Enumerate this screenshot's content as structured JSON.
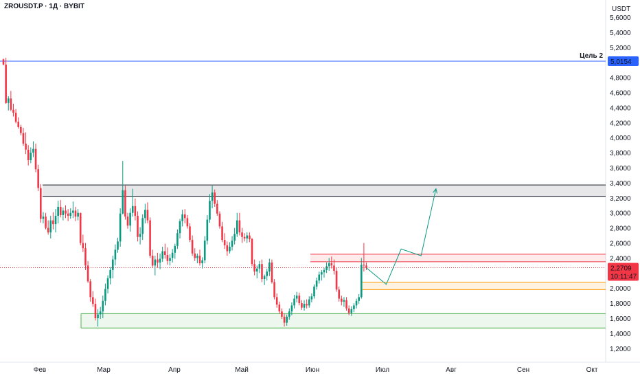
{
  "header": {
    "symbol_line": "ZROUSDT.P · 1Д · BYBIT"
  },
  "colors": {
    "up": "#089981",
    "down": "#f23645",
    "blue_line": "#2962ff",
    "green_zone": "#4caf50",
    "orange_zone": "#ff9800",
    "red_zone": "#f23645"
  },
  "chart_data": {
    "type": "candlestick",
    "currency_label": "USDT",
    "y_ticks": [
      "1,2000",
      "1,4000",
      "1,6000",
      "1,8000",
      "2,0000",
      "2,2000",
      "2,4000",
      "2,6000",
      "2,8000",
      "3,0000",
      "3,2000",
      "3,4000",
      "3,6000",
      "3,8000",
      "4,0000",
      "4,2000",
      "4,4000",
      "4,6000",
      "4,8000",
      "5,2000",
      "5,4000",
      "5,6000"
    ],
    "x_ticks": [
      "Фев",
      "Мар",
      "Апр",
      "Май",
      "Июн",
      "Июл",
      "Авг",
      "Сен",
      "Окт"
    ],
    "ylim": [
      1.1,
      5.75
    ],
    "target": {
      "label": "Цель 2",
      "value": 5.0154,
      "value_label": "5,0154"
    },
    "current_price": {
      "value": 2.2709,
      "value_label": "2,2709",
      "countdown": "10:11:47"
    },
    "zones": [
      {
        "name": "resistance-gray",
        "from": 3.22,
        "to": 3.37
      },
      {
        "name": "resistance-red",
        "from": 2.35,
        "to": 2.45
      },
      {
        "name": "support-orange",
        "from": 1.98,
        "to": 2.08
      },
      {
        "name": "support-green",
        "from": 1.47,
        "to": 1.66
      }
    ],
    "projection_path": [
      [
        0,
        2.27
      ],
      [
        8,
        2.05
      ],
      [
        14,
        2.52
      ],
      [
        22,
        2.43
      ],
      [
        28,
        3.32
      ]
    ],
    "candles": [
      [
        5.04,
        5.05,
        4.96,
        4.97
      ],
      [
        4.97,
        5.06,
        4.45,
        4.46
      ],
      [
        4.46,
        4.55,
        4.36,
        4.52
      ],
      [
        4.52,
        4.62,
        4.35,
        4.37
      ],
      [
        4.37,
        4.45,
        4.28,
        4.33
      ],
      [
        4.33,
        4.38,
        4.19,
        4.21
      ],
      [
        4.21,
        4.27,
        4.12,
        4.14
      ],
      [
        4.14,
        4.17,
        4.03,
        4.06
      ],
      [
        4.06,
        4.13,
        3.89,
        3.92
      ],
      [
        3.92,
        4.07,
        3.78,
        3.84
      ],
      [
        3.84,
        3.9,
        3.63,
        3.7
      ],
      [
        3.7,
        3.87,
        3.66,
        3.8
      ],
      [
        3.8,
        3.95,
        3.74,
        3.85
      ],
      [
        3.85,
        3.92,
        3.54,
        3.58
      ],
      [
        3.58,
        3.64,
        3.29,
        3.33
      ],
      [
        3.33,
        3.38,
        2.87,
        2.92
      ],
      [
        2.92,
        3.01,
        2.86,
        2.95
      ],
      [
        2.95,
        3.0,
        2.78,
        2.8
      ],
      [
        2.8,
        2.9,
        2.71,
        2.74
      ],
      [
        2.74,
        2.96,
        2.66,
        2.9
      ],
      [
        2.9,
        3.01,
        2.78,
        2.85
      ],
      [
        2.85,
        3.05,
        2.74,
        2.96
      ],
      [
        2.96,
        3.16,
        2.86,
        3.08
      ],
      [
        3.08,
        3.17,
        2.94,
        2.97
      ],
      [
        2.97,
        3.07,
        2.9,
        3.03
      ],
      [
        3.03,
        3.1,
        2.93,
        2.99
      ],
      [
        2.99,
        3.05,
        2.89,
        2.96
      ],
      [
        2.96,
        3.06,
        2.92,
        3.0
      ],
      [
        3.0,
        3.15,
        2.93,
        3.03
      ],
      [
        3.03,
        3.08,
        2.89,
        2.95
      ],
      [
        2.95,
        3.05,
        2.9,
        3.0
      ],
      [
        3.0,
        3.0,
        2.57,
        2.6
      ],
      [
        2.6,
        2.71,
        2.48,
        2.53
      ],
      [
        2.53,
        2.6,
        2.24,
        2.3
      ],
      [
        2.3,
        2.36,
        2.07,
        2.09
      ],
      [
        2.09,
        2.12,
        1.82,
        1.88
      ],
      [
        1.88,
        1.96,
        1.75,
        1.79
      ],
      [
        1.79,
        1.86,
        1.57,
        1.6
      ],
      [
        1.6,
        1.72,
        1.49,
        1.65
      ],
      [
        1.65,
        1.75,
        1.59,
        1.69
      ],
      [
        1.69,
        1.9,
        1.6,
        1.83
      ],
      [
        1.83,
        2.06,
        1.77,
        1.99
      ],
      [
        1.99,
        2.17,
        1.93,
        2.13
      ],
      [
        2.13,
        2.28,
        2.05,
        2.24
      ],
      [
        2.24,
        2.43,
        2.13,
        2.38
      ],
      [
        2.38,
        2.58,
        2.3,
        2.51
      ],
      [
        2.51,
        2.67,
        2.47,
        2.62
      ],
      [
        2.62,
        3.06,
        2.55,
        2.99
      ],
      [
        2.99,
        3.69,
        2.98,
        3.3
      ],
      [
        3.3,
        3.36,
        2.91,
        2.95
      ],
      [
        2.95,
        3.0,
        2.79,
        2.83
      ],
      [
        2.83,
        3.06,
        2.75,
        3.0
      ],
      [
        3.0,
        3.32,
        2.95,
        3.09
      ],
      [
        3.09,
        3.19,
        2.9,
        2.96
      ],
      [
        2.96,
        3.02,
        2.62,
        2.68
      ],
      [
        2.68,
        2.81,
        2.58,
        2.72
      ],
      [
        2.72,
        2.98,
        2.64,
        2.93
      ],
      [
        2.93,
        3.12,
        2.86,
        3.04
      ],
      [
        3.04,
        3.14,
        2.86,
        2.9
      ],
      [
        2.9,
        2.94,
        2.4,
        2.43
      ],
      [
        2.43,
        2.51,
        2.27,
        2.3
      ],
      [
        2.3,
        2.43,
        2.17,
        2.38
      ],
      [
        2.38,
        2.47,
        2.27,
        2.34
      ],
      [
        2.34,
        2.46,
        2.25,
        2.39
      ],
      [
        2.39,
        2.55,
        2.35,
        2.49
      ],
      [
        2.49,
        2.59,
        2.39,
        2.44
      ],
      [
        2.44,
        2.54,
        2.31,
        2.36
      ],
      [
        2.36,
        2.45,
        2.3,
        2.4
      ],
      [
        2.4,
        2.52,
        2.34,
        2.47
      ],
      [
        2.47,
        2.59,
        2.39,
        2.56
      ],
      [
        2.56,
        2.78,
        2.52,
        2.73
      ],
      [
        2.73,
        2.92,
        2.66,
        2.89
      ],
      [
        2.89,
        3.04,
        2.82,
        2.98
      ],
      [
        2.98,
        3.05,
        2.86,
        2.93
      ],
      [
        2.93,
        2.97,
        2.79,
        2.82
      ],
      [
        2.82,
        2.86,
        2.61,
        2.64
      ],
      [
        2.64,
        2.7,
        2.43,
        2.46
      ],
      [
        2.46,
        2.53,
        2.36,
        2.4
      ],
      [
        2.4,
        2.46,
        2.33,
        2.43
      ],
      [
        2.43,
        2.51,
        2.3,
        2.33
      ],
      [
        2.33,
        2.41,
        2.26,
        2.37
      ],
      [
        2.37,
        2.69,
        2.33,
        2.63
      ],
      [
        2.63,
        2.97,
        2.58,
        2.91
      ],
      [
        2.91,
        3.25,
        2.87,
        3.16
      ],
      [
        3.16,
        3.36,
        3.06,
        3.27
      ],
      [
        3.27,
        3.31,
        3.08,
        3.12
      ],
      [
        3.12,
        3.17,
        2.96,
        2.99
      ],
      [
        2.99,
        3.02,
        2.79,
        2.82
      ],
      [
        2.82,
        2.88,
        2.61,
        2.64
      ],
      [
        2.64,
        2.73,
        2.52,
        2.57
      ],
      [
        2.57,
        2.62,
        2.43,
        2.49
      ],
      [
        2.49,
        2.61,
        2.46,
        2.55
      ],
      [
        2.55,
        2.69,
        2.5,
        2.63
      ],
      [
        2.63,
        2.8,
        2.58,
        2.72
      ],
      [
        2.72,
        3.0,
        2.68,
        2.9
      ],
      [
        2.9,
        3.0,
        2.7,
        2.74
      ],
      [
        2.74,
        2.8,
        2.6,
        2.68
      ],
      [
        2.68,
        2.73,
        2.62,
        2.66
      ],
      [
        2.66,
        2.74,
        2.6,
        2.7
      ],
      [
        2.7,
        2.74,
        2.61,
        2.65
      ],
      [
        2.65,
        2.67,
        2.29,
        2.32
      ],
      [
        2.32,
        2.38,
        2.17,
        2.22
      ],
      [
        2.22,
        2.3,
        2.13,
        2.26
      ],
      [
        2.26,
        2.36,
        2.2,
        2.32
      ],
      [
        2.32,
        2.38,
        2.08,
        2.12
      ],
      [
        2.12,
        2.18,
        2.04,
        2.16
      ],
      [
        2.16,
        2.26,
        2.1,
        2.22
      ],
      [
        2.22,
        2.39,
        2.16,
        2.34
      ],
      [
        2.34,
        2.38,
        2.06,
        2.08
      ],
      [
        2.08,
        2.12,
        1.85,
        1.88
      ],
      [
        1.88,
        1.93,
        1.74,
        1.78
      ],
      [
        1.78,
        1.82,
        1.66,
        1.69
      ],
      [
        1.69,
        1.73,
        1.59,
        1.62
      ],
      [
        1.62,
        1.66,
        1.49,
        1.54
      ],
      [
        1.54,
        1.65,
        1.5,
        1.62
      ],
      [
        1.62,
        1.73,
        1.58,
        1.69
      ],
      [
        1.69,
        1.81,
        1.64,
        1.77
      ],
      [
        1.77,
        1.91,
        1.73,
        1.86
      ],
      [
        1.86,
        1.95,
        1.81,
        1.9
      ],
      [
        1.9,
        1.94,
        1.77,
        1.8
      ],
      [
        1.8,
        1.84,
        1.71,
        1.74
      ],
      [
        1.74,
        1.84,
        1.7,
        1.79
      ],
      [
        1.79,
        1.85,
        1.73,
        1.77
      ],
      [
        1.77,
        1.89,
        1.74,
        1.85
      ],
      [
        1.85,
        1.93,
        1.81,
        1.89
      ],
      [
        1.89,
        2.05,
        1.86,
        2.02
      ],
      [
        2.02,
        2.14,
        1.98,
        2.1
      ],
      [
        2.1,
        2.22,
        2.06,
        2.18
      ],
      [
        2.18,
        2.24,
        2.1,
        2.21
      ],
      [
        2.21,
        2.27,
        2.14,
        2.24
      ],
      [
        2.24,
        2.34,
        2.2,
        2.29
      ],
      [
        2.29,
        2.4,
        2.23,
        2.33
      ],
      [
        2.33,
        2.42,
        2.26,
        2.3
      ],
      [
        2.3,
        2.38,
        2.18,
        2.23
      ],
      [
        2.23,
        2.27,
        1.95,
        1.98
      ],
      [
        1.98,
        2.02,
        1.82,
        1.86
      ],
      [
        1.86,
        1.9,
        1.77,
        1.82
      ],
      [
        1.82,
        1.88,
        1.75,
        1.84
      ],
      [
        1.84,
        1.88,
        1.7,
        1.73
      ],
      [
        1.73,
        1.77,
        1.64,
        1.67
      ],
      [
        1.67,
        1.76,
        1.63,
        1.72
      ],
      [
        1.72,
        1.8,
        1.68,
        1.77
      ],
      [
        1.77,
        1.86,
        1.73,
        1.83
      ],
      [
        1.83,
        1.92,
        1.79,
        1.88
      ],
      [
        1.88,
        2.4,
        1.86,
        2.31
      ],
      [
        2.31,
        2.6,
        2.22,
        2.3
      ],
      [
        2.3,
        2.34,
        2.24,
        2.27
      ]
    ]
  }
}
